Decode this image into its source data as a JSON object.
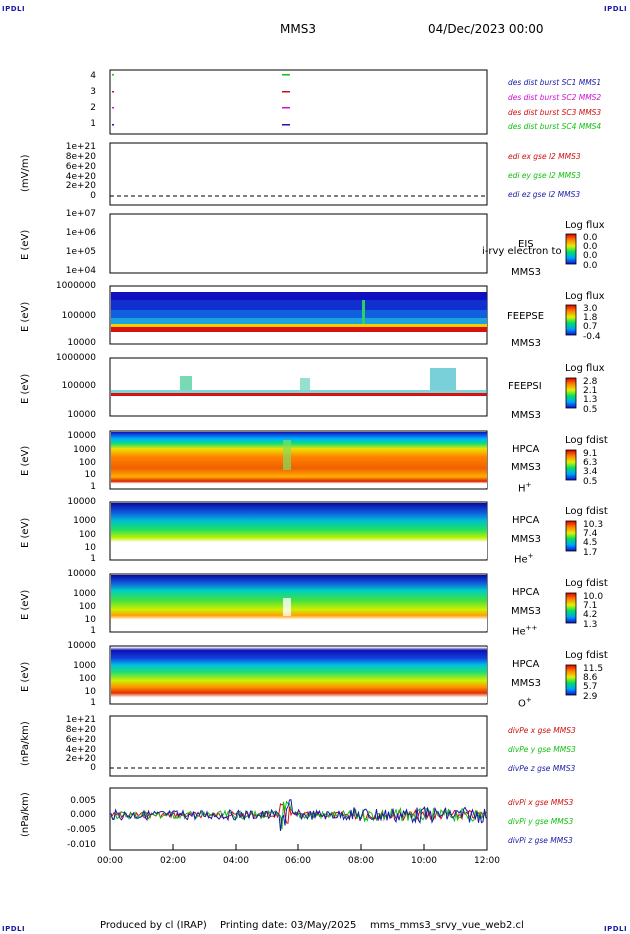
{
  "header": {
    "corner_tl": "IPDLI",
    "corner_tr": "IPDLI",
    "corner_bl": "IPDLI",
    "corner_br": "IPDLI",
    "spacecraft": "MMS3",
    "datetime": "04/Dec/2023 00:00"
  },
  "footer": {
    "produced_by": "Produced by cl (IRAP)",
    "printing_date": "Printing date: 03/May/2025",
    "filename": "mms_mms3_srvy_vue_web2.cl"
  },
  "x_axis": {
    "ticks": [
      "00:00",
      "02:00",
      "04:00",
      "06:00",
      "08:00",
      "10:00",
      "12:00"
    ]
  },
  "panels": {
    "p1": {
      "yticks": [
        "4",
        "3",
        "2",
        "1"
      ],
      "legend": [
        "des dist burst SC1 MMS1",
        "des dist burst SC2 MMS2",
        "des dist burst SC3 MMS3",
        "des dist burst SC4 MMS4"
      ]
    },
    "p2": {
      "ylabel": "(mV/m)",
      "yticks": [
        "1e+21",
        "8e+20",
        "6e+20",
        "4e+20",
        "2e+20",
        "0"
      ],
      "legend": [
        "edi ex gse l2 MMS3",
        "edi ey gse l2 MMS3",
        "edi ez gse l2 MMS3"
      ]
    },
    "p3": {
      "ylabel": "E (eV)",
      "yticks": [
        "1e+07",
        "1e+06",
        "1e+05",
        "1e+04"
      ],
      "instr": "EIS",
      "instr2": "MMS3",
      "overlay": "i-rvy electron to",
      "cb_title": "Log flux",
      "cb_values": [
        "0.0",
        "0.0",
        "0.0",
        "0.0"
      ]
    },
    "p4": {
      "ylabel": "E (eV)",
      "yticks": [
        "1000000",
        "100000",
        "10000"
      ],
      "instr": "FEEPSE",
      "instr2": "MMS3",
      "cb_title": "Log flux",
      "cb_values": [
        "3.0",
        "1.8",
        "0.7",
        "-0.4"
      ]
    },
    "p5": {
      "ylabel": "E (eV)",
      "yticks": [
        "1000000",
        "100000",
        "10000"
      ],
      "instr": "FEEPSI",
      "instr2": "MMS3",
      "cb_title": "Log flux",
      "cb_values": [
        "2.8",
        "2.1",
        "1.3",
        "0.5"
      ]
    },
    "p6": {
      "ylabel": "E (eV)",
      "yticks": [
        "10000",
        "1000",
        "100",
        "10",
        "1"
      ],
      "instr": "HPCA",
      "instr2": "MMS3",
      "species": "H",
      "charge": "+",
      "cb_title": "Log fdist",
      "cb_values": [
        "9.1",
        "6.3",
        "3.4",
        "0.5"
      ]
    },
    "p7": {
      "ylabel": "E (eV)",
      "yticks": [
        "10000",
        "1000",
        "100",
        "10",
        "1"
      ],
      "instr": "HPCA",
      "instr2": "MMS3",
      "species": "He",
      "charge": "+",
      "cb_title": "Log fdist",
      "cb_values": [
        "10.3",
        "7.4",
        "4.5",
        "1.7"
      ]
    },
    "p8": {
      "ylabel": "E (eV)",
      "yticks": [
        "10000",
        "1000",
        "100",
        "10",
        "1"
      ],
      "instr": "HPCA",
      "instr2": "MMS3",
      "species": "He",
      "charge": "++",
      "cb_title": "Log fdist",
      "cb_values": [
        "10.0",
        "7.1",
        "4.2",
        "1.3"
      ]
    },
    "p9": {
      "ylabel": "E (eV)",
      "yticks": [
        "10000",
        "1000",
        "100",
        "10",
        "1"
      ],
      "instr": "HPCA",
      "instr2": "MMS3",
      "species": "O",
      "charge": "+",
      "cb_title": "Log fdist",
      "cb_values": [
        "11.5",
        "8.6",
        "5.7",
        "2.9"
      ]
    },
    "p10": {
      "ylabel": "(nPa/km)",
      "yticks": [
        "1e+21",
        "8e+20",
        "6e+20",
        "4e+20",
        "2e+20",
        "0"
      ],
      "legend": [
        "divPe x gse MMS3",
        "divPe y gse MMS3",
        "divPe z gse MMS3"
      ]
    },
    "p11": {
      "ylabel": "(nPa/km)",
      "yticks": [
        "0.005",
        "0.000",
        "-0.005",
        "-0.010"
      ],
      "legend": [
        "divPi x gse MMS3",
        "divPi y gse MMS3",
        "divPi z gse MMS3"
      ]
    }
  },
  "colors": {
    "legend_blue": "#1a1aa8",
    "legend_magenta": "#d010d0",
    "legend_red": "#d01010",
    "legend_green": "#10c010",
    "axis": "#000000"
  },
  "chart_data": [
    {
      "type": "scatter",
      "panel": "p1",
      "x_range": [
        "00:00",
        "12:00"
      ],
      "ylim": [
        0.5,
        4.5
      ],
      "series": [
        {
          "name": "des dist burst SC1 MMS1",
          "x": [
            "00:05",
            "05:30"
          ],
          "y": [
            4,
            4
          ]
        },
        {
          "name": "des dist burst SC2 MMS2",
          "x": [
            "00:05",
            "05:30"
          ],
          "y": [
            3,
            3
          ]
        },
        {
          "name": "des dist burst SC3 MMS3",
          "x": [
            "00:05",
            "05:30"
          ],
          "y": [
            2,
            2
          ]
        },
        {
          "name": "des dist burst SC4 MMS4",
          "x": [
            "00:05",
            "05:30"
          ],
          "y": [
            1,
            1
          ]
        }
      ]
    },
    {
      "type": "line",
      "panel": "p2",
      "x_range": [
        "00:00",
        "12:00"
      ],
      "ylim": [
        0,
        1e+21
      ],
      "series": [
        {
          "name": "edi ex gse l2 MMS3",
          "y": [
            0
          ]
        }
      ]
    },
    {
      "type": "heatmap",
      "panel": "p4",
      "x_range": [
        "00:00",
        "12:00"
      ],
      "ylim": [
        10000,
        1000000
      ],
      "yscale": "log",
      "colorbar_range": [
        -0.4,
        3.0
      ]
    },
    {
      "type": "heatmap",
      "panel": "p5",
      "x_range": [
        "00:00",
        "12:00"
      ],
      "ylim": [
        10000,
        1000000
      ],
      "yscale": "log",
      "colorbar_range": [
        0.5,
        2.8
      ]
    },
    {
      "type": "heatmap",
      "panel": "p6",
      "x_range": [
        "00:00",
        "12:00"
      ],
      "ylim": [
        1,
        10000
      ],
      "yscale": "log",
      "colorbar_range": [
        0.5,
        9.1
      ]
    },
    {
      "type": "heatmap",
      "panel": "p7",
      "x_range": [
        "00:00",
        "12:00"
      ],
      "ylim": [
        1,
        10000
      ],
      "yscale": "log",
      "colorbar_range": [
        1.7,
        10.3
      ]
    },
    {
      "type": "heatmap",
      "panel": "p8",
      "x_range": [
        "00:00",
        "12:00"
      ],
      "ylim": [
        1,
        10000
      ],
      "yscale": "log",
      "colorbar_range": [
        1.3,
        10.0
      ]
    },
    {
      "type": "heatmap",
      "panel": "p9",
      "x_range": [
        "00:00",
        "12:00"
      ],
      "ylim": [
        1,
        10000
      ],
      "yscale": "log",
      "colorbar_range": [
        2.9,
        11.5
      ]
    },
    {
      "type": "line",
      "panel": "p11",
      "x_range": [
        "00:00",
        "12:00"
      ],
      "ylim": [
        -0.01,
        0.008
      ],
      "series": [
        {
          "name": "divPi x gse MMS3"
        },
        {
          "name": "divPi y gse MMS3"
        },
        {
          "name": "divPi z gse MMS3"
        }
      ]
    }
  ]
}
